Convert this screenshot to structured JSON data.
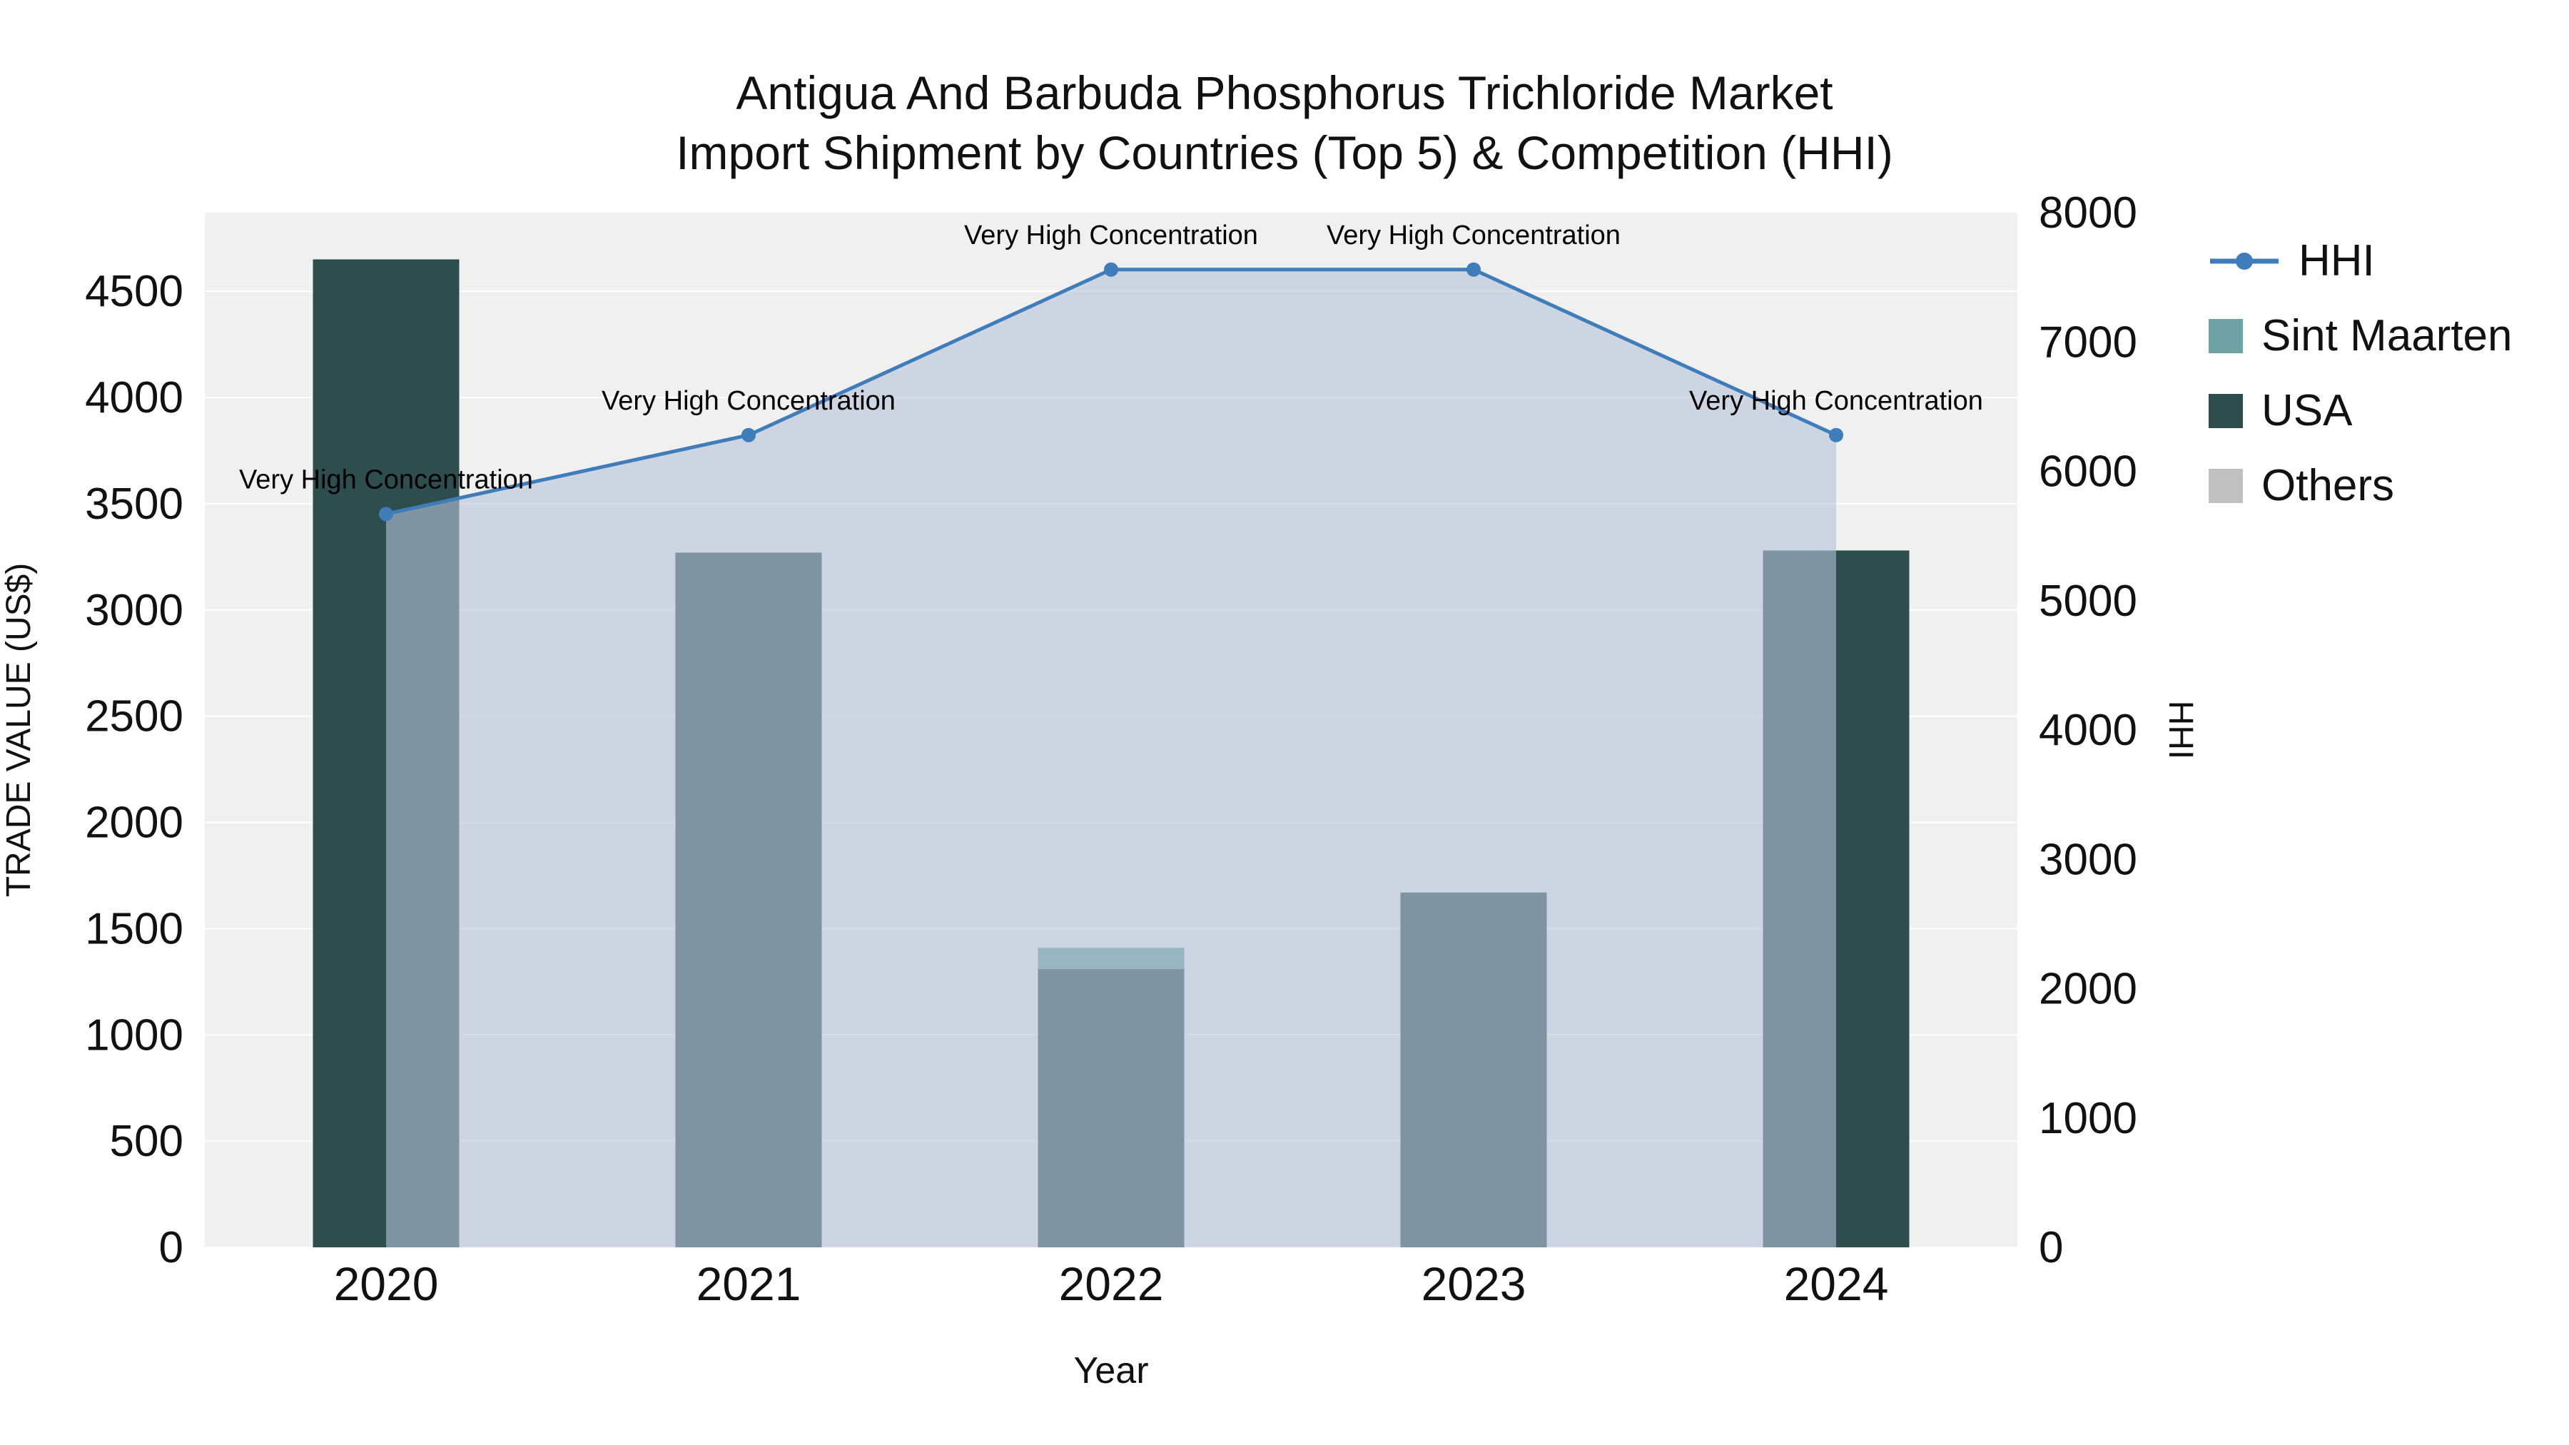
{
  "title": {
    "line1": "Antigua And Barbuda Phosphorus Trichloride Market",
    "line2": "Import Shipment by Countries (Top 5) & Competition (HHI)"
  },
  "chart_data": {
    "type": "bar",
    "subtype": "stacked-bars-with-line-overlay",
    "categories": [
      "2020",
      "2021",
      "2022",
      "2023",
      "2024"
    ],
    "bar_series": [
      {
        "name": "USA",
        "color": "#2e4e4e",
        "values": [
          4650,
          3270,
          1310,
          1670,
          3280
        ]
      },
      {
        "name": "Sint Maarten",
        "color": "#6fa3a3",
        "values": [
          0,
          0,
          100,
          0,
          0
        ]
      },
      {
        "name": "Others",
        "color": "#c0c0c0",
        "values": [
          0,
          0,
          0,
          0,
          0
        ]
      }
    ],
    "line_series": {
      "name": "HHI",
      "color": "#3f7cba",
      "fill": "rgba(180,195,215,0.6)",
      "values": [
        5670,
        6280,
        7560,
        7560,
        6280
      ]
    },
    "annotations": [
      "Very High Concentration",
      "Very High Concentration",
      "Very High Concentration",
      "Very High Concentration",
      "Very High Concentration"
    ],
    "left_axis": {
      "label": "TRADE VALUE (US$)",
      "min": 0,
      "max": 4870,
      "ticks": [
        0,
        500,
        1000,
        1500,
        2000,
        2500,
        3000,
        3500,
        4000,
        4500
      ]
    },
    "right_axis": {
      "label": "HHI",
      "min": 0,
      "max": 8000,
      "ticks": [
        0,
        1000,
        2000,
        3000,
        4000,
        5000,
        6000,
        7000,
        8000
      ]
    },
    "x_axis": {
      "label": "Year"
    },
    "legend": [
      {
        "label": "HHI",
        "type": "line",
        "color": "#3f7cba"
      },
      {
        "label": "Sint Maarten",
        "type": "square",
        "color": "#6fa3a3"
      },
      {
        "label": "USA",
        "type": "square",
        "color": "#2e4e4e"
      },
      {
        "label": "Others",
        "type": "square",
        "color": "#c0c0c0"
      }
    ],
    "plot_bg": "#f0f0f0",
    "grid_color": "#ffffff"
  }
}
